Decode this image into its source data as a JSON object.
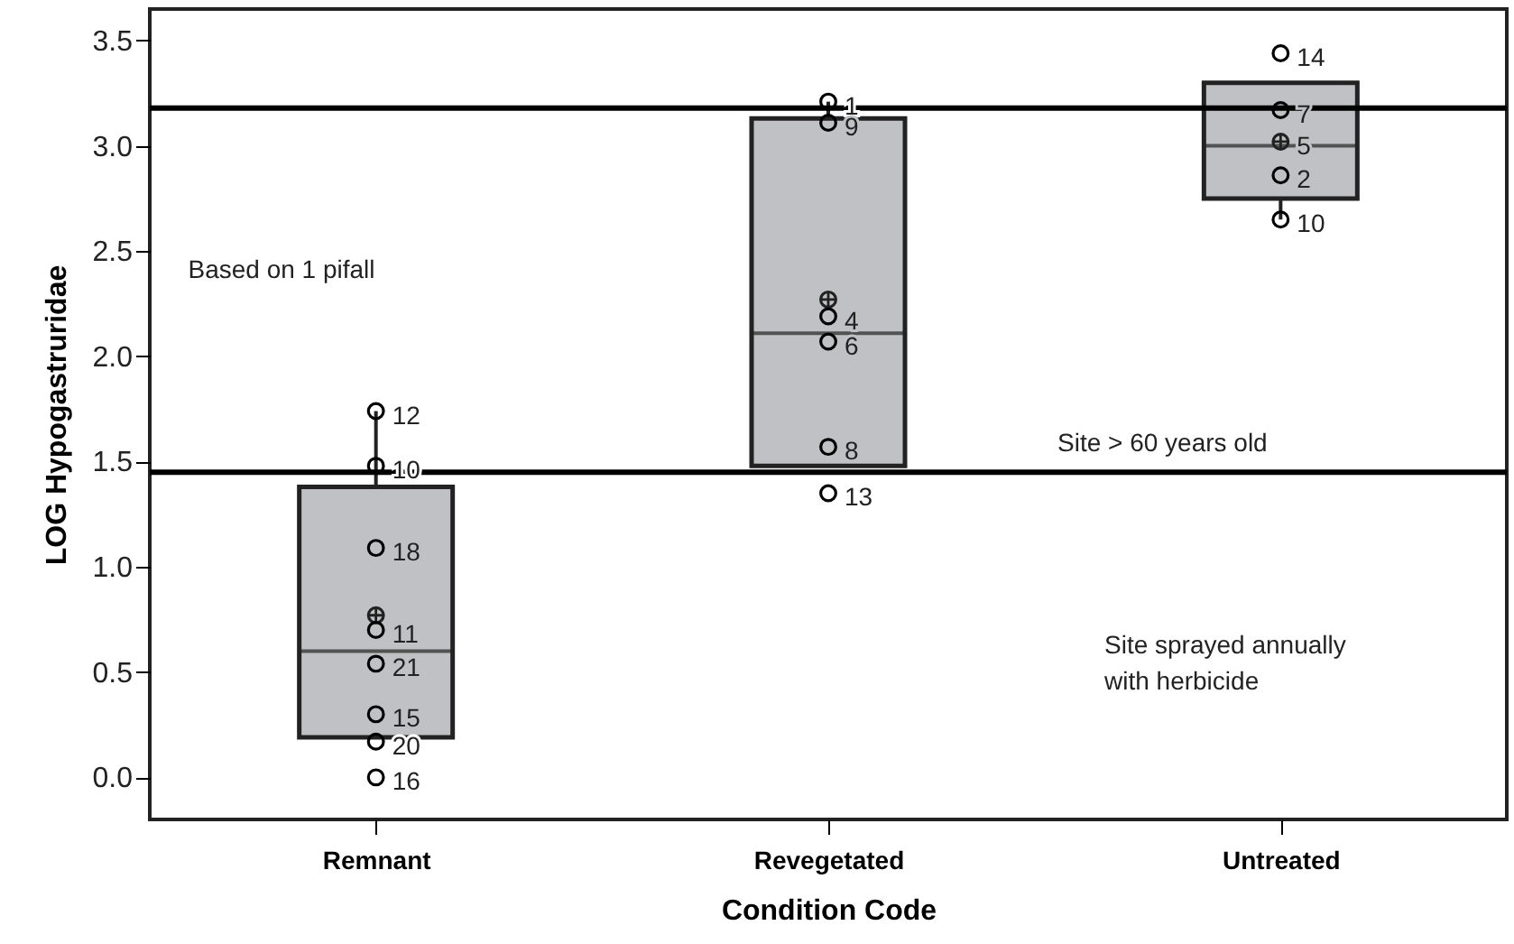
{
  "chart_data": {
    "type": "box",
    "xlabel": "Condition Code",
    "ylabel": "LOG Hypogastruridae",
    "categories": [
      "Remnant",
      "Revegetated",
      "Untreated"
    ],
    "ylim": [
      -0.2,
      3.65
    ],
    "yticks": [
      {
        "value": 0,
        "label": "0.0"
      },
      {
        "value": 0.5,
        "label": "0.5"
      },
      {
        "value": 1,
        "label": "1.0"
      },
      {
        "value": 1.5,
        "label": "1.5"
      },
      {
        "value": 2,
        "label": "2.0"
      },
      {
        "value": 2.5,
        "label": "2.5"
      },
      {
        "value": 3,
        "label": "3.0"
      },
      {
        "value": 3.5,
        "label": "3.5"
      }
    ],
    "series": [
      {
        "color": "#c0c1c4",
        "boxes": [
          {
            "low": 0.19,
            "q1": 0.19,
            "median": 0.6,
            "q3": 1.38,
            "high": 1.74,
            "mean": 0.77
          },
          {
            "low": 1.48,
            "q1": 1.48,
            "median": 2.11,
            "q3": 3.13,
            "high": 3.21,
            "mean": 2.27
          },
          {
            "low": 2.65,
            "q1": 2.75,
            "median": 3.0,
            "q3": 3.3,
            "high": 3.3,
            "mean": 3.02
          }
        ]
      },
      {
        "type": "scatter",
        "color": "#000000",
        "x": [
          "Remnant",
          "Remnant",
          "Remnant",
          "Remnant",
          "Remnant",
          "Remnant",
          "Remnant",
          "Remnant",
          "Revegetated",
          "Revegetated",
          "Revegetated",
          "Revegetated",
          "Revegetated",
          "Revegetated",
          "Untreated",
          "Untreated",
          "Untreated",
          "Untreated"
        ],
        "values": [
          1.74,
          1.48,
          1.09,
          0.7,
          0.54,
          0.3,
          0.17,
          0.0,
          3.21,
          3.11,
          2.19,
          2.07,
          1.57,
          1.35,
          3.44,
          3.17,
          2.86,
          2.65
        ]
      }
    ],
    "ref_lines": [
      {
        "axis": "y",
        "value": 3.18,
        "color": "#000000"
      },
      {
        "axis": "y",
        "value": 1.45,
        "color": "#000000"
      }
    ],
    "annotations": [
      {
        "text": "12",
        "x": "Remnant",
        "y": 1.74
      },
      {
        "text": "10",
        "x": "Remnant",
        "y": 1.48
      },
      {
        "text": "18",
        "x": "Remnant",
        "y": 1.09
      },
      {
        "text": "11",
        "x": "Remnant",
        "y": 0.7
      },
      {
        "text": "21",
        "x": "Remnant",
        "y": 0.54
      },
      {
        "text": "15",
        "x": "Remnant",
        "y": 0.3
      },
      {
        "text": "20",
        "x": "Remnant",
        "y": 0.17
      },
      {
        "text": "16",
        "x": "Remnant",
        "y": 0.0
      },
      {
        "text": "1",
        "x": "Revegetated",
        "y": 3.21
      },
      {
        "text": "9",
        "x": "Revegetated",
        "y": 3.11
      },
      {
        "text": "4",
        "x": "Revegetated",
        "y": 2.19
      },
      {
        "text": "6",
        "x": "Revegetated",
        "y": 2.07
      },
      {
        "text": "8",
        "x": "Revegetated",
        "y": 1.57
      },
      {
        "text": "13",
        "x": "Revegetated",
        "y": 1.35
      },
      {
        "text": "14",
        "x": "Untreated",
        "y": 3.44
      },
      {
        "text": "7",
        "x": "Untreated",
        "y": 3.17
      },
      {
        "text": "5",
        "x": "Untreated",
        "y": 3.02
      },
      {
        "text": "2",
        "x": "Untreated",
        "y": 2.86
      },
      {
        "text": "10",
        "x": "Untreated",
        "y": 2.65
      },
      "Based on 1 pifall",
      "Site > 60 years old",
      "Site sprayed annually\nwith herbicide"
    ],
    "marker": "circle",
    "grid": false
  }
}
